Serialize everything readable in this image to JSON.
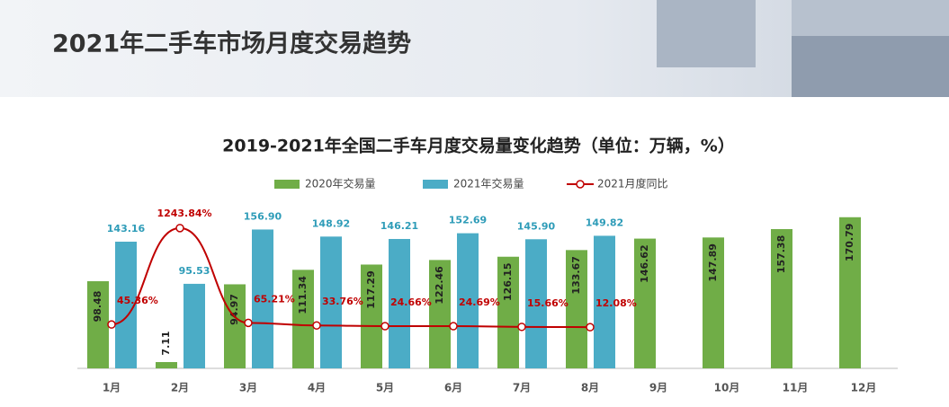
{
  "header": {
    "title": "2021年二手车市场月度交易趋势"
  },
  "chart_data": {
    "type": "bar-line",
    "title": "2019-2021年全国二手车月度交易量变化趋势（单位：万辆，%）",
    "categories": [
      "1月",
      "2月",
      "3月",
      "4月",
      "5月",
      "6月",
      "7月",
      "8月",
      "9月",
      "10月",
      "11月",
      "12月"
    ],
    "series": [
      {
        "name": "2020年交易量",
        "type": "bar",
        "color": "#70ad47",
        "values": [
          98.48,
          7.11,
          94.97,
          111.34,
          117.29,
          122.46,
          126.15,
          133.67,
          146.62,
          147.89,
          157.38,
          170.79
        ]
      },
      {
        "name": "2021年交易量",
        "type": "bar",
        "color": "#4bacc6",
        "values": [
          143.16,
          95.53,
          156.9,
          148.92,
          146.21,
          152.69,
          145.9,
          149.82,
          null,
          null,
          null,
          null
        ],
        "value_labels": [
          "143.16",
          "95.53",
          "156.90",
          "148.92",
          "146.21",
          "152.69",
          "145.90",
          "149.82",
          null,
          null,
          null,
          null
        ]
      },
      {
        "name": "2021月度同比",
        "type": "line",
        "axis": "y2",
        "color": "#c00000",
        "values": [
          45.36,
          1243.84,
          65.21,
          33.76,
          24.66,
          24.69,
          15.66,
          12.08,
          null,
          null,
          null,
          null
        ],
        "value_labels": [
          "45.36%",
          "1243.84%",
          "65.21%",
          "33.76%",
          "24.66%",
          "24.69%",
          "15.66%",
          "12.08%",
          null,
          null,
          null,
          null
        ]
      }
    ],
    "ylim": [
      0,
      200
    ],
    "y2lim": [
      -500,
      1700
    ],
    "legend": "top"
  }
}
